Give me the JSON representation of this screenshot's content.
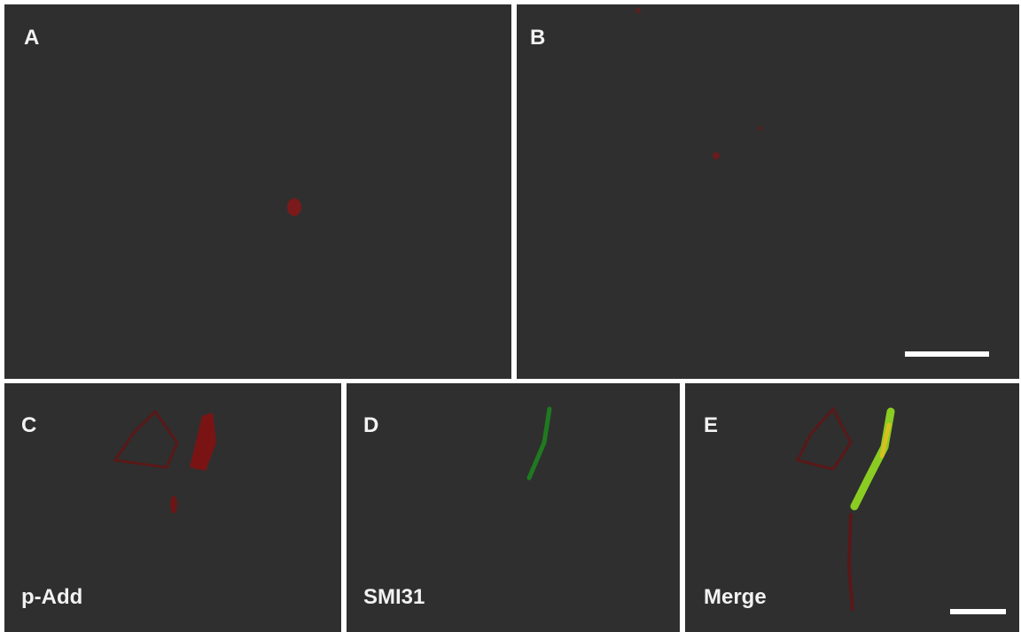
{
  "panels": [
    {
      "label": "A"
    },
    {
      "label": "B"
    },
    {
      "label": "C",
      "caption": "p-Add"
    },
    {
      "label": "D",
      "caption": "SMI31"
    },
    {
      "label": "E",
      "caption": "Merge"
    }
  ]
}
